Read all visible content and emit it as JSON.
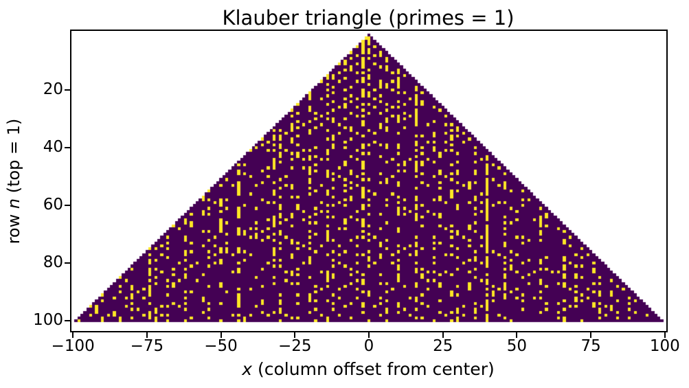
{
  "chart_data": {
    "type": "heatmap",
    "title": "Klauber triangle (primes = 1)",
    "xlabel": "x (column offset from center)",
    "ylabel": "row n (top = 1)",
    "xlabel_parts": {
      "var": "x",
      "rest": " (column offset from center)"
    },
    "ylabel_parts": {
      "pre": "row ",
      "var": "n",
      "rest": " (top = 1)"
    },
    "rows": 100,
    "max_value": 10000,
    "cell_rule": "Klauber triangle: row n (n = 1..100) has cells at x = -(n-1)..(n-1); cell value = n*n - n + 1 + x; cell = 1 (prime, yellow) if value is prime, else 0 (composite, dark purple); outside triangle is blank white",
    "notable_feature": "continuous yellow column at x = 40 from Euler's prime polynomial n^2 - n + 41",
    "colormap": "viridis",
    "colors": {
      "prime": "#fde725",
      "composite": "#440154",
      "background": "#ffffff",
      "spine": "#000000",
      "text": "#000000"
    },
    "x_extent": [
      -100.5,
      100.5
    ],
    "y_extent": [
      -0.5,
      103.5
    ],
    "x_ticks": [
      -100,
      -75,
      -50,
      -25,
      0,
      25,
      50,
      75,
      100
    ],
    "x_tick_labels": [
      "−100",
      "−75",
      "−50",
      "−25",
      "0",
      "25",
      "50",
      "75",
      "100"
    ],
    "y_ticks": [
      20,
      40,
      60,
      80,
      100
    ],
    "y_tick_labels": [
      "20",
      "40",
      "60",
      "80",
      "100"
    ],
    "grid": false,
    "legend": "none",
    "ticks_position": "bottom-left"
  }
}
